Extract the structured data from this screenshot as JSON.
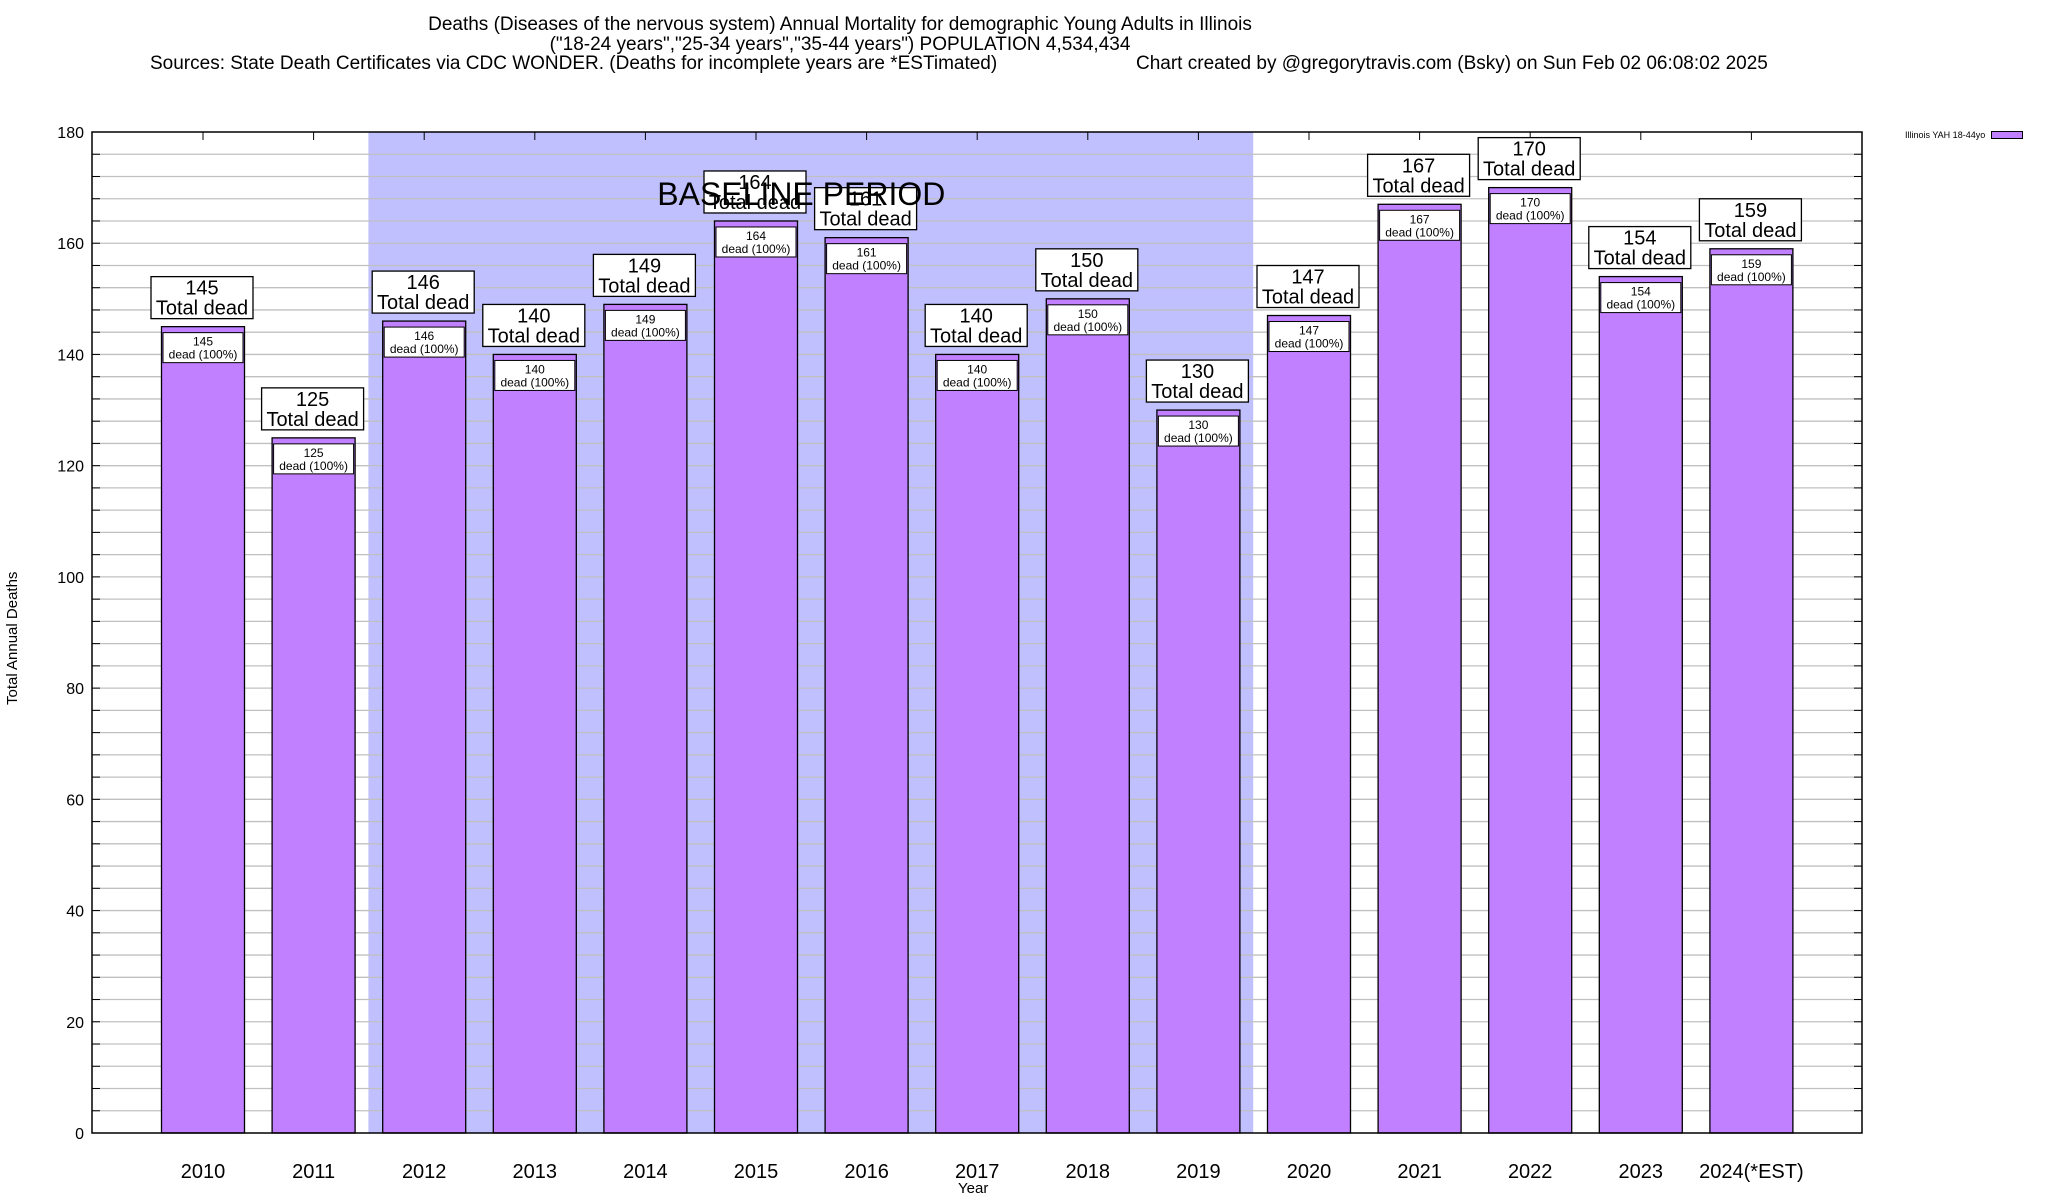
{
  "header": {
    "title_line1": "Deaths (Diseases of the nervous system) Annual Mortality for demographic Young Adults in Illinois",
    "title_line2": "(\"18-24 years\",\"25-34 years\",\"35-44 years\") POPULATION 4,534,434",
    "sources": "Sources: State Death Certificates via CDC WONDER. (Deaths for incomplete years are *ESTimated)",
    "credit": "Chart created by @gregorytravis.com (Bsky) on Sun Feb 02 06:08:02 2025"
  },
  "colors": {
    "bar": "#c080ff",
    "baseline_band": "#c0c0ff",
    "grid": "#c0c0c0"
  },
  "chart_data": {
    "type": "bar",
    "title": "Deaths (Diseases of the nervous system) Annual Mortality for demographic Young Adults in Illinois",
    "xlabel": "Year",
    "ylabel": "Total Annual Deaths",
    "ylim": [
      0,
      180
    ],
    "yticks": [
      0,
      20,
      40,
      60,
      80,
      100,
      120,
      140,
      160,
      180
    ],
    "yminor_step": 4,
    "grid": true,
    "legend": {
      "position": "top-right",
      "entries": [
        "Illinois YAH 18-44yo"
      ]
    },
    "categories": [
      "2010",
      "2011",
      "2012",
      "2013",
      "2014",
      "2015",
      "2016",
      "2017",
      "2018",
      "2019",
      "2020",
      "2021",
      "2022",
      "2023",
      "2024(*EST)"
    ],
    "series": [
      {
        "name": "Illinois YAH 18-44yo",
        "values": [
          145,
          125,
          146,
          140,
          149,
          164,
          161,
          140,
          150,
          130,
          147,
          167,
          170,
          154,
          159
        ]
      }
    ],
    "total_label_suffix": "Total dead",
    "inner_label_suffix": "dead (100%)",
    "annotations": [
      {
        "text": "BASELINE PERIOD",
        "from_category": "2012",
        "to_category": "2019",
        "type": "shaded-band"
      }
    ]
  }
}
